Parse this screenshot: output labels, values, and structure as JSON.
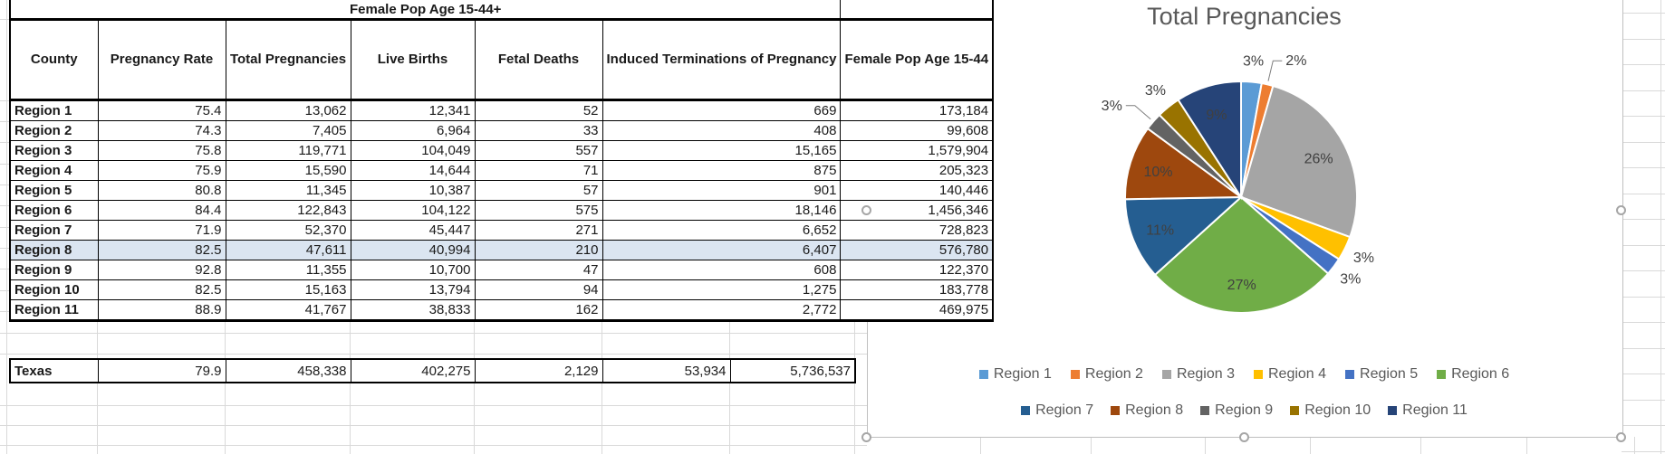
{
  "table": {
    "title": "Female Pop Age 15-44+",
    "columns": [
      "County",
      "Pregnancy Rate",
      "Total Pregnancies",
      "Live Births",
      "Fetal Deaths",
      "Induced Terminations of Pregnancy",
      "Female Pop Age 15-44"
    ],
    "rows": [
      {
        "county": "Region 1",
        "values": [
          "75.4",
          "13,062",
          "12,341",
          "52",
          "669",
          "173,184"
        ],
        "highlight": false
      },
      {
        "county": "Region 2",
        "values": [
          "74.3",
          "7,405",
          "6,964",
          "33",
          "408",
          "99,608"
        ],
        "highlight": false
      },
      {
        "county": "Region 3",
        "values": [
          "75.8",
          "119,771",
          "104,049",
          "557",
          "15,165",
          "1,579,904"
        ],
        "highlight": false
      },
      {
        "county": "Region 4",
        "values": [
          "75.9",
          "15,590",
          "14,644",
          "71",
          "875",
          "205,323"
        ],
        "highlight": false
      },
      {
        "county": "Region 5",
        "values": [
          "80.8",
          "11,345",
          "10,387",
          "57",
          "901",
          "140,446"
        ],
        "highlight": false
      },
      {
        "county": "Region 6",
        "values": [
          "84.4",
          "122,843",
          "104,122",
          "575",
          "18,146",
          "1,456,346"
        ],
        "highlight": false
      },
      {
        "county": "Region 7",
        "values": [
          "71.9",
          "52,370",
          "45,447",
          "271",
          "6,652",
          "728,823"
        ],
        "highlight": false
      },
      {
        "county": "Region 8",
        "values": [
          "82.5",
          "47,611",
          "40,994",
          "210",
          "6,407",
          "576,780"
        ],
        "highlight": true
      },
      {
        "county": "Region 9",
        "values": [
          "92.8",
          "11,355",
          "10,700",
          "47",
          "608",
          "122,370"
        ],
        "highlight": false
      },
      {
        "county": "Region 10",
        "values": [
          "82.5",
          "15,163",
          "13,794",
          "94",
          "1,275",
          "183,778"
        ],
        "highlight": false
      },
      {
        "county": "Region 11",
        "values": [
          "88.9",
          "41,767",
          "38,833",
          "162",
          "2,772",
          "469,975"
        ],
        "highlight": false
      }
    ],
    "totals": {
      "county": "Texas",
      "values": [
        "79.9",
        "458,338",
        "402,275",
        "2,129",
        "53,934",
        "5,736,537"
      ]
    }
  },
  "chart_data": {
    "type": "pie",
    "title": "Total Pregnancies",
    "categories": [
      "Region 1",
      "Region 2",
      "Region 3",
      "Region 4",
      "Region 5",
      "Region 6",
      "Region 7",
      "Region 8",
      "Region 9",
      "Region 10",
      "Region 11"
    ],
    "values": [
      13062,
      7405,
      119771,
      15590,
      11345,
      122843,
      52370,
      47611,
      11355,
      15163,
      41767
    ],
    "total": 458338,
    "labels": [
      "3%",
      "2%",
      "26%",
      "3%",
      "3%",
      "27%",
      "11%",
      "10%",
      "3%",
      "3%",
      "9%"
    ],
    "colors": [
      "#5B9BD5",
      "#ED7D31",
      "#A5A5A5",
      "#FFC000",
      "#4472C4",
      "#70AD47",
      "#255E91",
      "#9E480E",
      "#636363",
      "#997300",
      "#264478"
    ],
    "label_placements": [
      "outside",
      "callout-right",
      "inside",
      "outside",
      "outside",
      "inside",
      "inside",
      "inside",
      "callout-left",
      "outside",
      "inside"
    ],
    "legend_position": "bottom",
    "legend_rows": [
      [
        0,
        1,
        2,
        3,
        4,
        5
      ],
      [
        6,
        7,
        8,
        9,
        10
      ]
    ]
  }
}
